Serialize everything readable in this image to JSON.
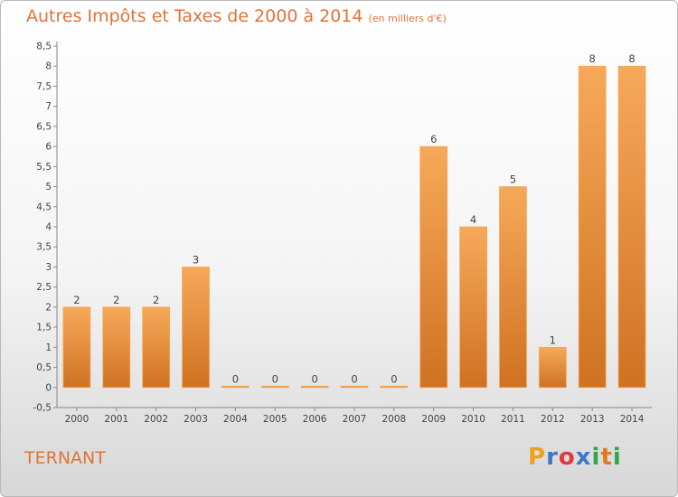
{
  "header": {
    "title": "Autres Impôts et Taxes de 2000 à 2014",
    "unit": "(en milliers d'€)"
  },
  "footer": {
    "commune": "TERNANT",
    "logo_letters": [
      "P",
      "r",
      "o",
      "x",
      "i",
      "t",
      "i"
    ],
    "logo_colors": [
      "#f0a020",
      "#3b78c8",
      "#e03a3a",
      "#3b78c8",
      "#2fa84a",
      "#e07a20",
      "#2fa84a"
    ]
  },
  "colors": {
    "bar_top": "#f6a95a",
    "bar_bottom": "#cf7222",
    "accent": "#e0733a"
  },
  "chart_data": {
    "type": "bar",
    "title": "Autres Impôts et Taxes de 2000 à 2014",
    "categories": [
      "2000",
      "2001",
      "2002",
      "2003",
      "2004",
      "2005",
      "2006",
      "2007",
      "2008",
      "2009",
      "2010",
      "2011",
      "2012",
      "2013",
      "2014"
    ],
    "values": [
      2,
      2,
      2,
      3,
      0,
      0,
      0,
      0,
      0,
      6,
      4,
      5,
      1,
      8,
      8
    ],
    "ylim": [
      -0.5,
      8.5
    ],
    "yticks": [
      "-0,5",
      "0",
      "0,5",
      "1",
      "1,5",
      "2",
      "2,5",
      "3",
      "3,5",
      "4",
      "4,5",
      "5",
      "5,5",
      "6",
      "6,5",
      "7",
      "7,5",
      "8",
      "8,5"
    ],
    "grid": false,
    "xlabel": "",
    "ylabel": ""
  }
}
